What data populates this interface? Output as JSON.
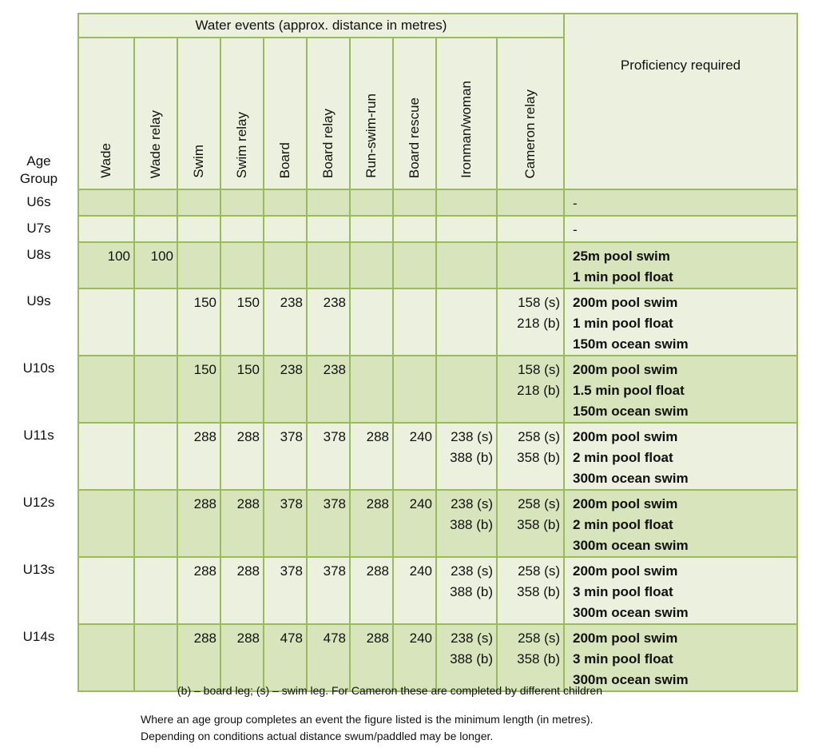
{
  "header": {
    "age_group_label": "Age Group",
    "water_events_title": "Water events (approx. distance in metres)",
    "proficiency_title": "Proficiency required",
    "events": [
      "Wade",
      "Wade relay",
      "Swim",
      "Swim relay",
      "Board",
      "Board relay",
      "Run-swim-run",
      "Board rescue",
      "Ironman/woman",
      "Cameron relay"
    ]
  },
  "rows": [
    {
      "age": "U6s",
      "cells": [
        [],
        [],
        [],
        [],
        [],
        [],
        [],
        [],
        [],
        []
      ],
      "proficiency": [
        "-"
      ]
    },
    {
      "age": "U7s",
      "cells": [
        [],
        [],
        [],
        [],
        [],
        [],
        [],
        [],
        [],
        []
      ],
      "proficiency": [
        "-"
      ]
    },
    {
      "age": "U8s",
      "cells": [
        [
          "100"
        ],
        [
          "100"
        ],
        [],
        [],
        [],
        [],
        [],
        [],
        [],
        []
      ],
      "proficiency": [
        "25m pool swim",
        "1 min pool float"
      ]
    },
    {
      "age": "U9s",
      "cells": [
        [],
        [],
        [
          "150"
        ],
        [
          "150"
        ],
        [
          "238"
        ],
        [
          "238"
        ],
        [],
        [],
        [],
        [
          "158 (s)",
          "218 (b)"
        ]
      ],
      "proficiency": [
        "200m pool swim",
        "1 min pool float",
        "150m ocean swim"
      ]
    },
    {
      "age": "U10s",
      "cells": [
        [],
        [],
        [
          "150"
        ],
        [
          "150"
        ],
        [
          "238"
        ],
        [
          "238"
        ],
        [],
        [],
        [],
        [
          "158 (s)",
          "218 (b)"
        ]
      ],
      "proficiency": [
        "200m pool swim",
        "1.5 min pool float",
        "150m ocean swim"
      ]
    },
    {
      "age": "U11s",
      "cells": [
        [],
        [],
        [
          "288"
        ],
        [
          "288"
        ],
        [
          "378"
        ],
        [
          "378"
        ],
        [
          "288"
        ],
        [
          "240"
        ],
        [
          "238 (s)",
          "388 (b)"
        ],
        [
          "258 (s)",
          "358 (b)"
        ]
      ],
      "proficiency": [
        "200m pool swim",
        "2 min pool float",
        "300m ocean swim"
      ]
    },
    {
      "age": "U12s",
      "cells": [
        [],
        [],
        [
          "288"
        ],
        [
          "288"
        ],
        [
          "378"
        ],
        [
          "378"
        ],
        [
          "288"
        ],
        [
          "240"
        ],
        [
          "238 (s)",
          "388 (b)"
        ],
        [
          "258 (s)",
          "358 (b)"
        ]
      ],
      "proficiency": [
        "200m pool swim",
        "2 min pool float",
        "300m ocean swim"
      ]
    },
    {
      "age": "U13s",
      "cells": [
        [],
        [],
        [
          "288"
        ],
        [
          "288"
        ],
        [
          "378"
        ],
        [
          "378"
        ],
        [
          "288"
        ],
        [
          "240"
        ],
        [
          "238 (s)",
          "388 (b)"
        ],
        [
          "258 (s)",
          "358 (b)"
        ]
      ],
      "proficiency": [
        "200m pool swim",
        "3 min pool float",
        "300m ocean swim"
      ]
    },
    {
      "age": "U14s",
      "cells": [
        [],
        [],
        [
          "288"
        ],
        [
          "288"
        ],
        [
          "478"
        ],
        [
          "478"
        ],
        [
          "288"
        ],
        [
          "240"
        ],
        [
          "238 (s)",
          "388 (b)"
        ],
        [
          "258 (s)",
          "358 (b)"
        ]
      ],
      "proficiency": [
        "200m pool swim",
        "3 min pool float",
        "300m ocean swim"
      ]
    }
  ],
  "notes": {
    "legend": "(b) – board leg; (s) – swim leg.  For Cameron these are completed by different children",
    "footer_line1": "Where an age group completes an event the figure listed is the minimum length (in metres).",
    "footer_line2": "Depending on conditions actual distance swum/paddled may be longer."
  }
}
